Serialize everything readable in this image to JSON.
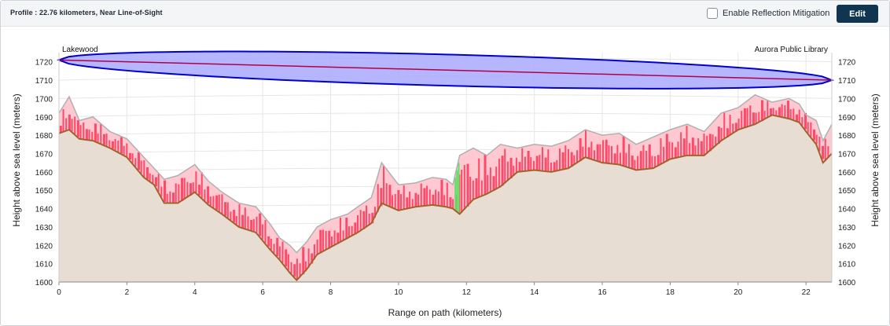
{
  "header": {
    "title": "Profile : 22.76 kilometers, Near Line-of-Sight",
    "reflection_label": "Enable Reflection Mitigation",
    "reflection_checked": false,
    "edit_label": "Edit"
  },
  "chart_data": {
    "type": "area",
    "xlabel": "Range on path (kilometers)",
    "ylabel": "Height above sea level (meters)",
    "xlim": [
      0,
      22.76
    ],
    "ylim": [
      1600,
      1725
    ],
    "x_ticks": [
      0,
      2,
      4,
      6,
      8,
      10,
      12,
      14,
      16,
      18,
      20,
      22
    ],
    "y_ticks": [
      1600,
      1610,
      1620,
      1630,
      1640,
      1650,
      1660,
      1670,
      1680,
      1690,
      1700,
      1710,
      1720
    ],
    "grid": true,
    "endpoints": {
      "start_label": "Lakewood",
      "end_label": "Aurora Public Library",
      "start_height": 1721,
      "end_height": 1710
    },
    "colors": {
      "terrain_fill": "#e8ddd2",
      "terrain_line": "#a0622d",
      "fresnel_fill": "#a9a9ff",
      "fresnel_stroke": "#0000cc",
      "los_line": "#b0004a",
      "obstruction_fill": "#ff3b5c",
      "clutter_fill": "#ffc9d2",
      "clutter_line": "#b0b0b0",
      "clear_fill": "#66dd66",
      "grid": "#e6e6e6"
    },
    "fresnel_max_radius_m": 8.5,
    "terrain": {
      "x": [
        0,
        0.3,
        0.6,
        1.0,
        1.5,
        2.0,
        2.5,
        2.8,
        3.1,
        3.5,
        4.0,
        4.4,
        4.8,
        5.3,
        5.8,
        6.2,
        6.5,
        6.8,
        7.0,
        7.3,
        7.6,
        8.0,
        8.5,
        8.8,
        9.2,
        9.5,
        10.0,
        10.5,
        11.0,
        11.4,
        11.6,
        11.8,
        12.2,
        12.6,
        13.0,
        13.5,
        14.0,
        14.5,
        15.0,
        15.5,
        16.0,
        16.5,
        17.0,
        17.5,
        18.0,
        18.5,
        19.0,
        19.5,
        20.0,
        20.5,
        21.0,
        21.5,
        21.8,
        22.0,
        22.3,
        22.5,
        22.76
      ],
      "y": [
        1681,
        1683,
        1678,
        1677,
        1673,
        1668,
        1657,
        1653,
        1643,
        1643,
        1649,
        1642,
        1637,
        1630,
        1627,
        1618,
        1612,
        1605,
        1601,
        1607,
        1615,
        1619,
        1624,
        1627,
        1632,
        1643,
        1639,
        1641,
        1642,
        1641,
        1640,
        1637,
        1645,
        1648,
        1652,
        1660,
        1661,
        1660,
        1662,
        1668,
        1665,
        1664,
        1661,
        1662,
        1667,
        1669,
        1669,
        1677,
        1683,
        1686,
        1691,
        1689,
        1687,
        1682,
        1675,
        1665,
        1670
      ]
    },
    "clutter_top": {
      "x": [
        0,
        0.3,
        0.6,
        1.0,
        1.5,
        2.0,
        2.5,
        2.8,
        3.1,
        3.5,
        4.0,
        4.4,
        4.8,
        5.3,
        5.8,
        6.2,
        6.5,
        6.8,
        7.0,
        7.3,
        7.6,
        8.0,
        8.5,
        8.8,
        9.2,
        9.5,
        10.0,
        10.5,
        11.0,
        11.4,
        11.6,
        11.8,
        12.2,
        12.6,
        13.0,
        13.5,
        14.0,
        14.5,
        15.0,
        15.5,
        16.0,
        16.5,
        17.0,
        17.5,
        18.0,
        18.5,
        19.0,
        19.5,
        20.0,
        20.5,
        21.0,
        21.5,
        21.8,
        22.0,
        22.3,
        22.5,
        22.76
      ],
      "y": [
        1692,
        1701,
        1688,
        1690,
        1682,
        1678,
        1668,
        1662,
        1656,
        1658,
        1664,
        1655,
        1649,
        1643,
        1641,
        1632,
        1624,
        1620,
        1616,
        1622,
        1630,
        1634,
        1637,
        1641,
        1646,
        1665,
        1653,
        1654,
        1657,
        1656,
        1653,
        1669,
        1673,
        1669,
        1675,
        1673,
        1675,
        1674,
        1677,
        1683,
        1680,
        1681,
        1675,
        1679,
        1683,
        1686,
        1682,
        1692,
        1695,
        1702,
        1698,
        1700,
        1697,
        1691,
        1688,
        1677,
        1686
      ]
    },
    "clear_segments": [
      [
        11.65,
        11.8
      ]
    ]
  }
}
